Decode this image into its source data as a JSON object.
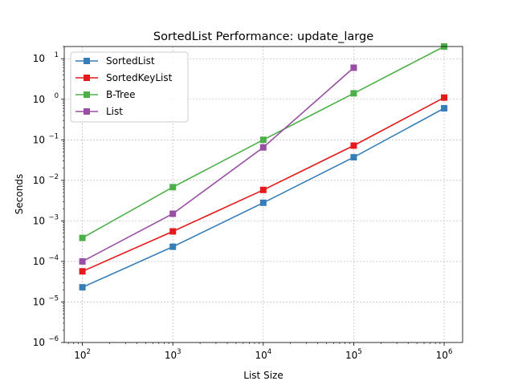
{
  "chart_data": {
    "type": "line",
    "title": "SortedList Performance: update_large",
    "xlabel": "List Size",
    "ylabel": "Seconds",
    "xscale": "log",
    "yscale": "log",
    "xlim": [
      63,
      1600000
    ],
    "ylim": [
      1e-06,
      20
    ],
    "x_ticks": [
      {
        "value": 100,
        "base": "10",
        "exp": "2"
      },
      {
        "value": 1000,
        "base": "10",
        "exp": "3"
      },
      {
        "value": 10000,
        "base": "10",
        "exp": "4"
      },
      {
        "value": 100000,
        "base": "10",
        "exp": "5"
      },
      {
        "value": 1000000,
        "base": "10",
        "exp": "6"
      }
    ],
    "y_ticks": [
      {
        "value": 1e-06,
        "base": "10",
        "exp": "−6"
      },
      {
        "value": 1e-05,
        "base": "10",
        "exp": "−5"
      },
      {
        "value": 0.0001,
        "base": "10",
        "exp": "−4"
      },
      {
        "value": 0.001,
        "base": "10",
        "exp": "−3"
      },
      {
        "value": 0.01,
        "base": "10",
        "exp": "−2"
      },
      {
        "value": 0.1,
        "base": "10",
        "exp": "−1"
      },
      {
        "value": 1,
        "base": "10",
        "exp": "0"
      },
      {
        "value": 10,
        "base": "10",
        "exp": "1"
      }
    ],
    "grid": true,
    "legend_position": "top-left",
    "series": [
      {
        "name": "SortedList",
        "color": "#377eb8",
        "x": [
          100,
          1000,
          10000,
          100000,
          1000000
        ],
        "y": [
          2.3e-05,
          0.00023,
          0.0028,
          0.037,
          0.6
        ]
      },
      {
        "name": "SortedKeyList",
        "color": "#e41a1c",
        "x": [
          100,
          1000,
          10000,
          100000,
          1000000
        ],
        "y": [
          5.7e-05,
          0.00055,
          0.0058,
          0.072,
          1.1
        ]
      },
      {
        "name": "B-Tree",
        "color": "#4daf4a",
        "x": [
          100,
          1000,
          10000,
          100000,
          1000000
        ],
        "y": [
          0.00038,
          0.0068,
          0.1,
          1.4,
          20
        ]
      },
      {
        "name": "List",
        "color": "#984ea3",
        "x": [
          100,
          1000,
          10000,
          100000
        ],
        "y": [
          0.0001,
          0.0015,
          0.065,
          6
        ]
      }
    ]
  }
}
